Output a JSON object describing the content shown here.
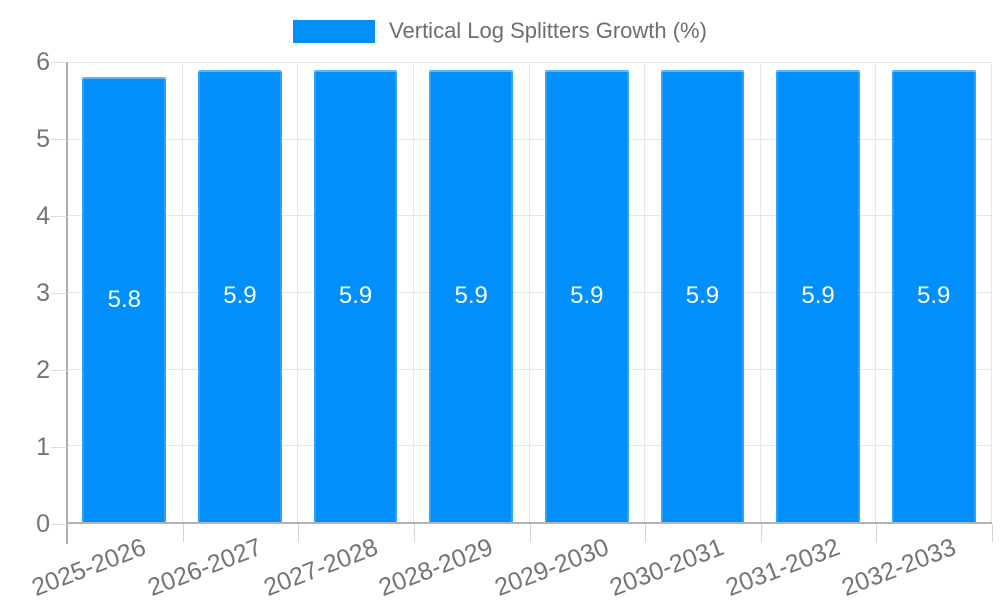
{
  "legend": {
    "label": "Vertical Log Splitters Growth (%)",
    "swatch_color": "#008FFB"
  },
  "chart_data": {
    "type": "bar",
    "title": "Vertical Log Splitters Growth (%)",
    "categories": [
      "2025-2026",
      "2026-2027",
      "2027-2028",
      "2028-2029",
      "2029-2030",
      "2030-2031",
      "2031-2032",
      "2032-2033"
    ],
    "series": [
      {
        "name": "Vertical Log Splitters Growth (%)",
        "values": [
          5.8,
          5.9,
          5.9,
          5.9,
          5.9,
          5.9,
          5.9,
          5.9
        ]
      }
    ],
    "data_labels": [
      "5.8",
      "5.9",
      "5.9",
      "5.9",
      "5.9",
      "5.9",
      "5.9",
      "5.9"
    ],
    "xlabel": "",
    "ylabel": "",
    "ylim": [
      0,
      6
    ],
    "yticks": [
      0,
      1,
      2,
      3,
      4,
      5,
      6
    ],
    "grid": true,
    "legend_position": "top",
    "bar_color": "#008FFB",
    "data_label_color": "#ffffff",
    "axis_label_color": "#757575",
    "gridline_color": "#e7e7e7"
  }
}
